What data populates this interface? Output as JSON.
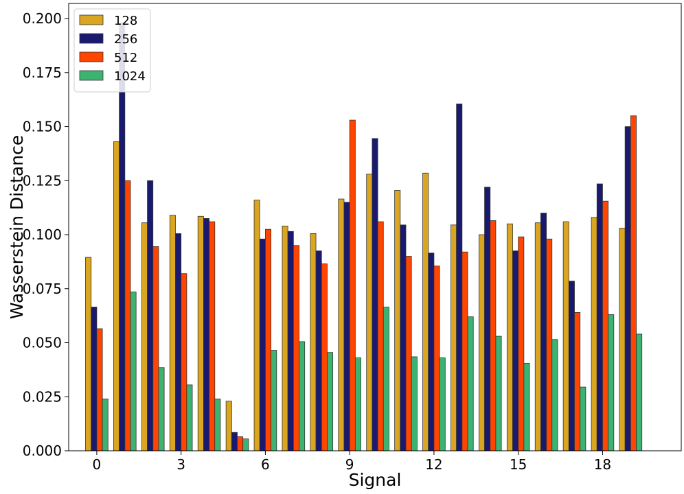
{
  "chart_data": {
    "type": "bar",
    "title": "",
    "xlabel": "Signal",
    "ylabel": "Wasserstein Distance",
    "categories": [
      0,
      1,
      2,
      3,
      4,
      5,
      6,
      7,
      8,
      9,
      10,
      11,
      12,
      13,
      14,
      15,
      16,
      17,
      18,
      19
    ],
    "x_ticks": [
      "0",
      "3",
      "6",
      "9",
      "12",
      "15",
      "18"
    ],
    "x_tick_values": [
      0,
      3,
      6,
      9,
      12,
      15,
      18
    ],
    "y_ticks": [
      "0.000",
      "0.025",
      "0.050",
      "0.075",
      "0.100",
      "0.125",
      "0.150",
      "0.175",
      "0.200"
    ],
    "y_tick_values": [
      0,
      0.025,
      0.05,
      0.075,
      0.1,
      0.125,
      0.15,
      0.175,
      0.2
    ],
    "ylim": [
      0,
      0.207
    ],
    "xlim": [
      -1.0,
      20.8
    ],
    "grid": false,
    "legend_position": "top-left",
    "series": [
      {
        "name": "128",
        "color": "#DAA520",
        "values": [
          0.0895,
          0.143,
          0.1055,
          0.109,
          0.1085,
          0.023,
          0.116,
          0.104,
          0.1005,
          0.1165,
          0.128,
          0.1205,
          0.1285,
          0.1045,
          0.1,
          0.105,
          0.1055,
          0.106,
          0.108,
          0.103
        ]
      },
      {
        "name": "256",
        "color": "#191970",
        "values": [
          0.0665,
          0.198,
          0.125,
          0.1005,
          0.1075,
          0.0085,
          0.098,
          0.1015,
          0.0925,
          0.115,
          0.1445,
          0.1045,
          0.0915,
          0.1605,
          0.122,
          0.0925,
          0.11,
          0.0785,
          0.1235,
          0.15
        ]
      },
      {
        "name": "512",
        "color": "#FF4500",
        "values": [
          0.0565,
          0.125,
          0.0945,
          0.082,
          0.106,
          0.0065,
          0.1025,
          0.095,
          0.0865,
          0.153,
          0.106,
          0.09,
          0.0855,
          0.092,
          0.1065,
          0.099,
          0.098,
          0.064,
          0.1155,
          0.155
        ]
      },
      {
        "name": "1024",
        "color": "#3CB371",
        "values": [
          0.024,
          0.0735,
          0.0385,
          0.0305,
          0.024,
          0.0055,
          0.0465,
          0.0505,
          0.0455,
          0.043,
          0.0665,
          0.0435,
          0.043,
          0.062,
          0.053,
          0.0405,
          0.0515,
          0.0295,
          0.063,
          0.054
        ]
      }
    ]
  }
}
